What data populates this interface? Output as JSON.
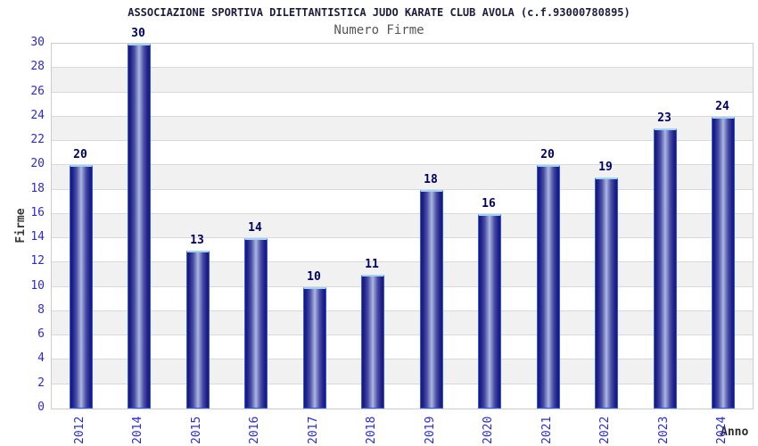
{
  "chart": {
    "title": "ASSOCIAZIONE SPORTIVA DILETTANTISTICA JUDO KARATE CLUB AVOLA (c.f.93000780895)",
    "subtitle": "Numero Firme",
    "ylabel": "Firme",
    "xlabel": "Anno"
  },
  "chart_data": {
    "type": "bar",
    "title": "ASSOCIAZIONE SPORTIVA DILETTANTISTICA JUDO KARATE CLUB AVOLA (c.f.93000780895)",
    "subtitle": "Numero Firme",
    "xlabel": "Anno",
    "ylabel": "Firme",
    "categories": [
      "2012",
      "2014",
      "2015",
      "2016",
      "2017",
      "2018",
      "2019",
      "2020",
      "2021",
      "2022",
      "2023",
      "2024"
    ],
    "values": [
      20,
      30,
      13,
      14,
      10,
      11,
      18,
      16,
      20,
      19,
      23,
      24
    ],
    "ylim": [
      0,
      30
    ],
    "yticks": [
      0,
      2,
      4,
      6,
      8,
      10,
      12,
      14,
      16,
      18,
      20,
      22,
      24,
      26,
      28,
      30
    ],
    "grid": true,
    "legend": false,
    "stripes_alternating": true,
    "colors": {
      "bar_dark": "#17177c",
      "bar_light": "#aeb5e0",
      "bar_outline": "#2f5bd9",
      "bar_top_cap": "#9ed4f2",
      "tick_label": "#2b2bd4",
      "value_label": "#000060",
      "grid_line": "#d9d9d9",
      "stripe_gray": "#f1f1f1",
      "plot_border": "#cccccc",
      "title": "#1c1c3c",
      "subtitle": "#555555"
    }
  }
}
